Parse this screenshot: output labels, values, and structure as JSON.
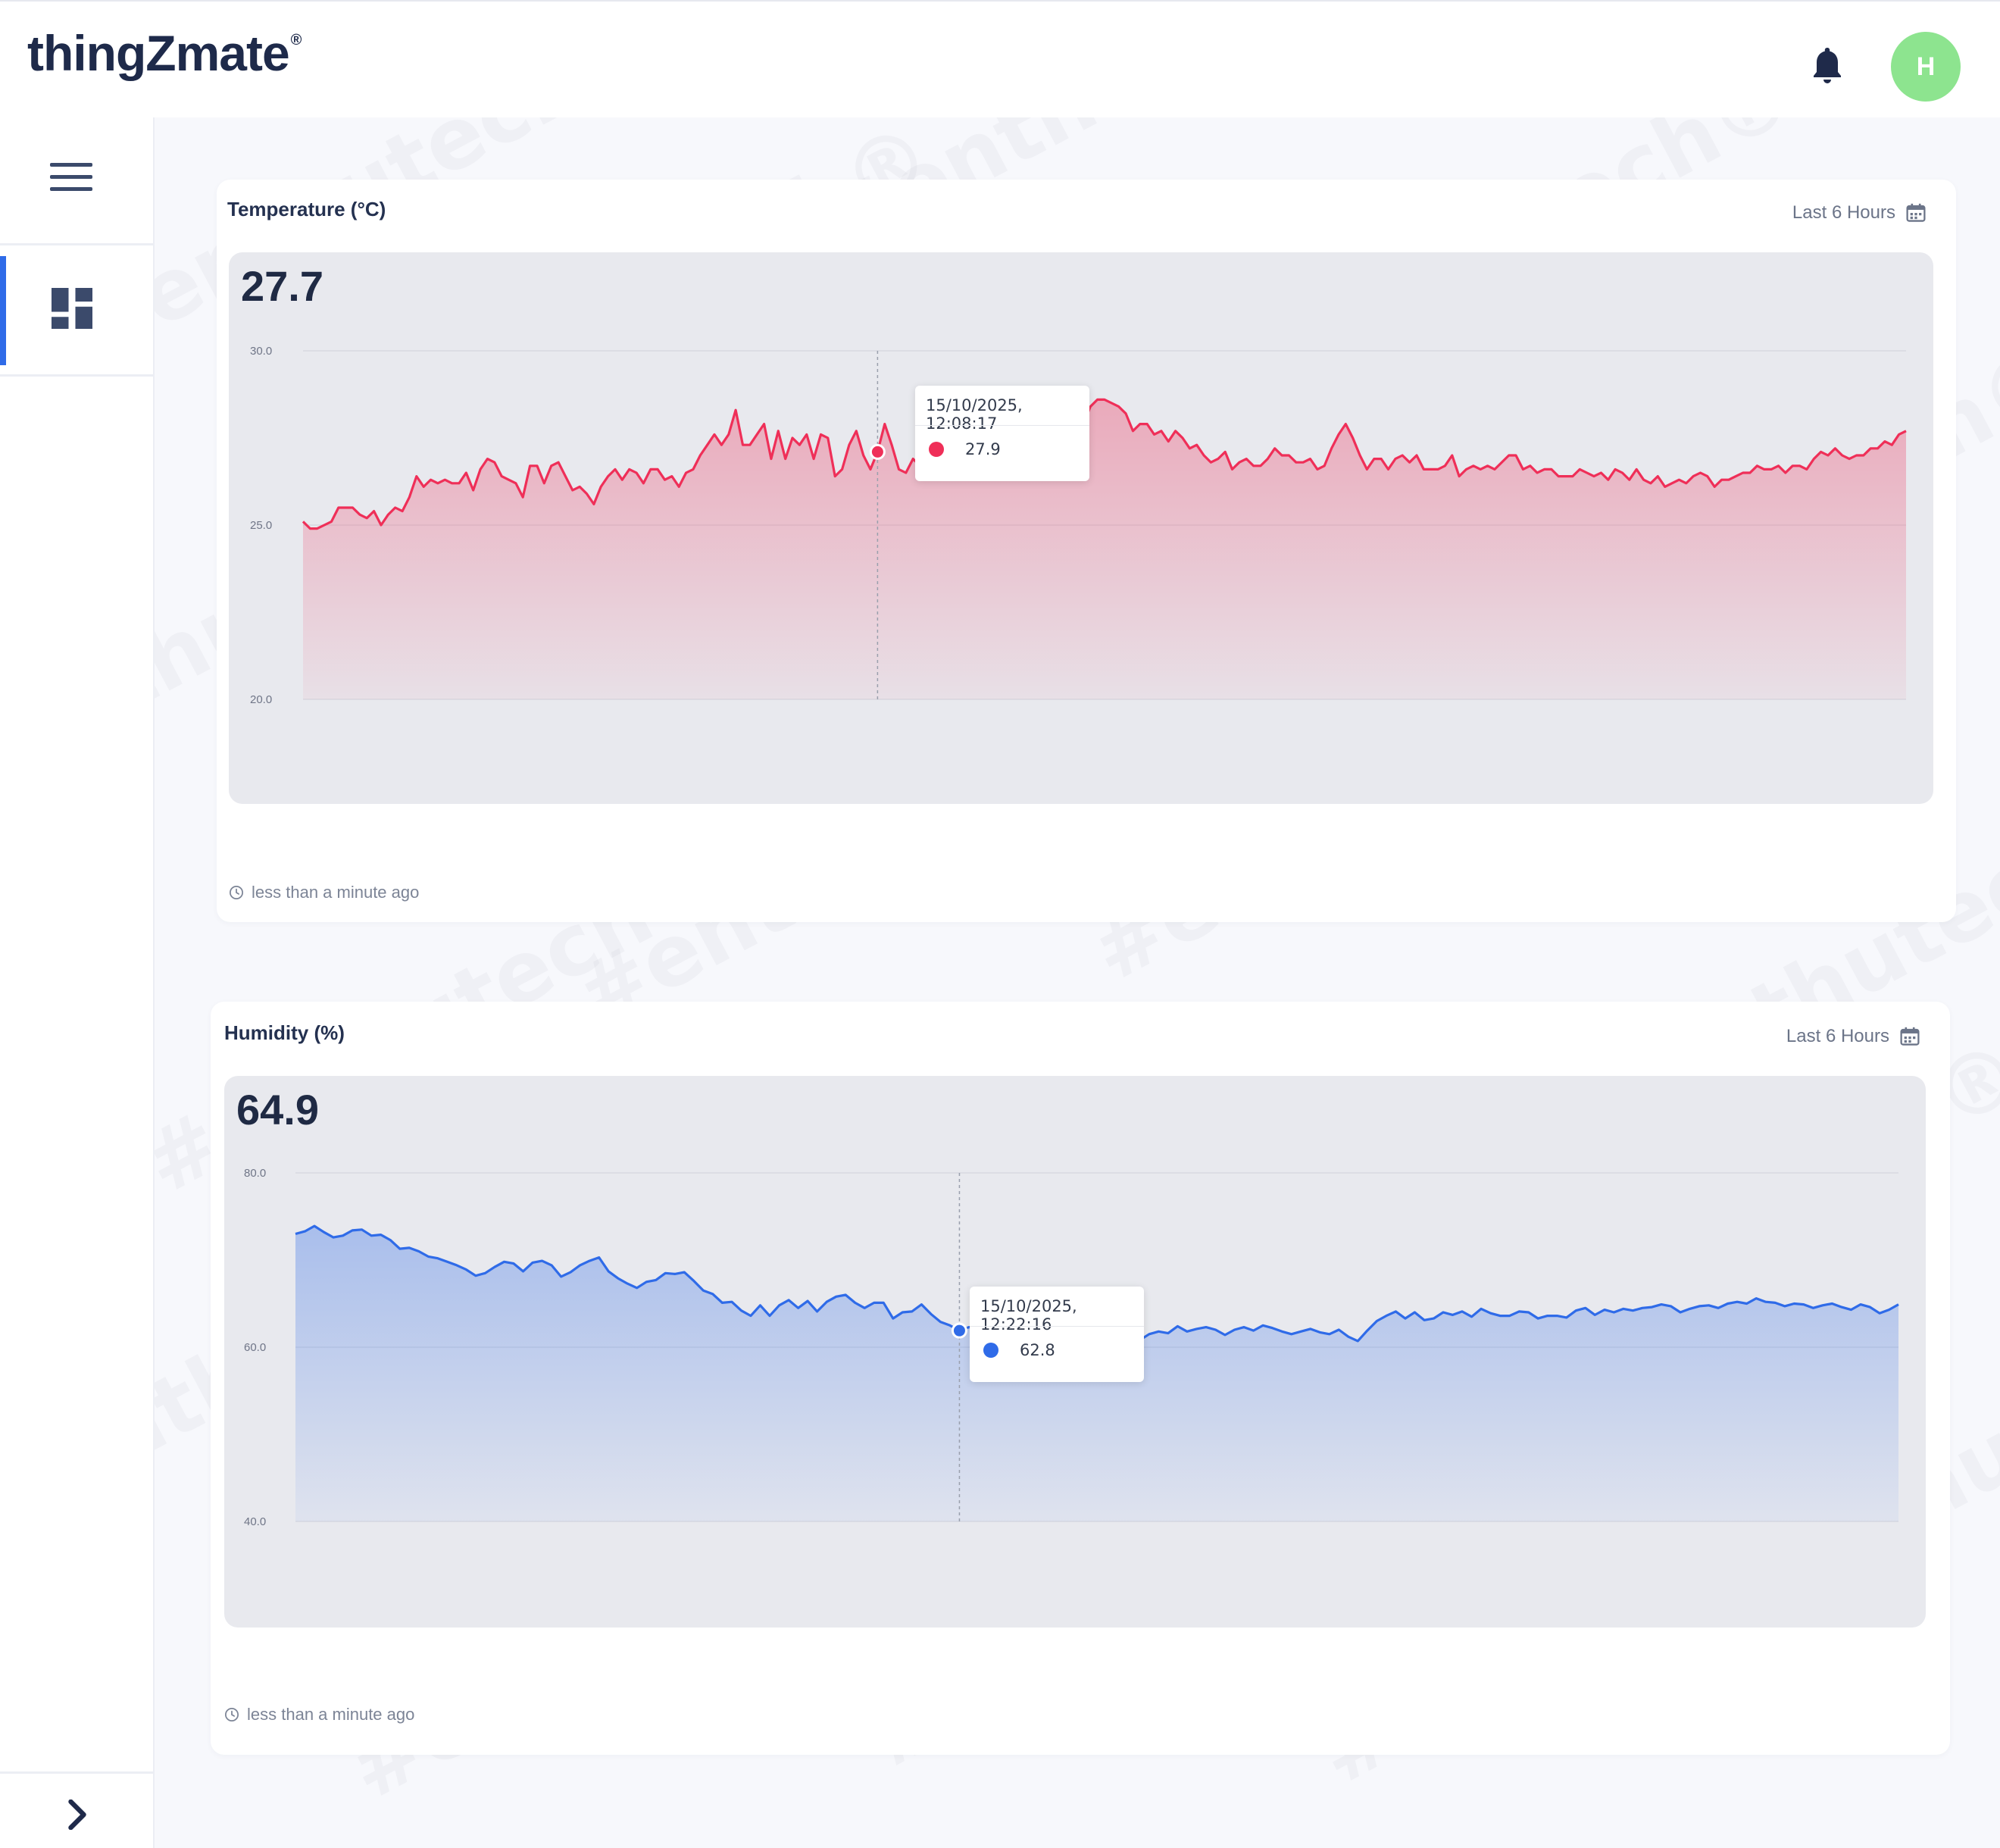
{
  "header": {
    "logo_text": "thingZmate",
    "logo_mark": "®",
    "bell_icon": "bell-icon",
    "avatar_initial": "H",
    "avatar_color": "#8de48f"
  },
  "sidebar": {
    "menu_icon": "hamburger-icon",
    "items": [
      {
        "icon": "dashboard-icon",
        "active": true
      }
    ],
    "expand_icon": "chevron-right-icon"
  },
  "watermark": "#enthutech®",
  "widgets": [
    {
      "title": "Temperature (°C)",
      "range_label": "Last 6 Hours",
      "current_value": "27.7",
      "updated": "less than a minute ago",
      "color": "#ef2f58",
      "tooltip": {
        "time": "15/10/2025, 12:08:17",
        "value": "27.9"
      }
    },
    {
      "title": "Humidity (%)",
      "range_label": "Last 6 Hours",
      "current_value": "64.9",
      "updated": "less than a minute ago",
      "color": "#2f6be8",
      "tooltip": {
        "time": "15/10/2025, 12:22:16",
        "value": "62.8"
      }
    }
  ],
  "chart_data": [
    {
      "type": "area",
      "title": "Temperature (°C)",
      "xlabel": "",
      "ylabel": "",
      "ylim": [
        20,
        30
      ],
      "yticks": [
        "30.0",
        "25.0",
        "20.0"
      ],
      "grid": true,
      "series": [
        {
          "color": "#ef2f58",
          "values": [
            25.1,
            24.9,
            24.9,
            25.0,
            25.1,
            25.5,
            25.5,
            25.5,
            25.3,
            25.2,
            25.4,
            25.0,
            25.3,
            25.5,
            25.4,
            25.8,
            26.4,
            26.1,
            26.3,
            26.2,
            26.3,
            26.2,
            26.2,
            26.5,
            26.0,
            26.6,
            26.9,
            26.8,
            26.4,
            26.3,
            26.2,
            25.8,
            26.7,
            26.7,
            26.2,
            26.7,
            26.8,
            26.4,
            26.0,
            26.1,
            25.9,
            25.6,
            26.1,
            26.4,
            26.6,
            26.3,
            26.6,
            26.5,
            26.2,
            26.6,
            26.6,
            26.3,
            26.4,
            26.1,
            26.5,
            26.6,
            27.0,
            27.3,
            27.6,
            27.3,
            27.6,
            28.3,
            27.3,
            27.3,
            27.6,
            27.9,
            26.9,
            27.7,
            26.9,
            27.5,
            27.3,
            27.6,
            26.9,
            27.6,
            27.5,
            26.4,
            26.6,
            27.3,
            27.7,
            27.0,
            26.6,
            27.1,
            27.9,
            27.3,
            26.6,
            26.5,
            26.9,
            26.7,
            27.3,
            27.8,
            26.5,
            27.2,
            27.5,
            27.8,
            27.3,
            27.4,
            28.0,
            27.7,
            27.9,
            27.4,
            27.6,
            27.5,
            27.2,
            27.1,
            27.5,
            27.8,
            27.8,
            28.2,
            27.9,
            27.8,
            27.9,
            28.4,
            28.6,
            28.6,
            28.5,
            28.4,
            28.2,
            27.7,
            27.9,
            27.9,
            27.6,
            27.7,
            27.4,
            27.7,
            27.5,
            27.2,
            27.3,
            27.0,
            26.8,
            26.9,
            27.1,
            26.6,
            26.8,
            26.9,
            26.7,
            26.7,
            26.9,
            27.2,
            27.0,
            27.0,
            26.8,
            26.8,
            26.9,
            26.6,
            26.7,
            27.2,
            27.6,
            27.9,
            27.5,
            27.0,
            26.6,
            26.9,
            26.9,
            26.6,
            26.9,
            27.0,
            26.8,
            27.0,
            26.6,
            26.6,
            26.6,
            26.7,
            27.0,
            26.4,
            26.6,
            26.7,
            26.6,
            26.7,
            26.6,
            26.8,
            27.0,
            27.0,
            26.6,
            26.7,
            26.5,
            26.6,
            26.6,
            26.4,
            26.4,
            26.4,
            26.6,
            26.5,
            26.4,
            26.5,
            26.3,
            26.6,
            26.5,
            26.3,
            26.6,
            26.3,
            26.2,
            26.4,
            26.1,
            26.2,
            26.3,
            26.2,
            26.4,
            26.5,
            26.4,
            26.1,
            26.3,
            26.3,
            26.4,
            26.5,
            26.5,
            26.7,
            26.6,
            26.6,
            26.7,
            26.5,
            26.7,
            26.7,
            26.6,
            26.9,
            27.1,
            27.0,
            27.2,
            27.0,
            26.9,
            27.0,
            27.0,
            27.2,
            27.2,
            27.4,
            27.3,
            27.6,
            27.7
          ]
        }
      ]
    },
    {
      "type": "area",
      "title": "Humidity (%)",
      "xlabel": "",
      "ylabel": "",
      "ylim": [
        40,
        80
      ],
      "yticks": [
        "80.0",
        "60.0",
        "40.0"
      ],
      "grid": true,
      "series": [
        {
          "color": "#2f6be8",
          "values": [
            73.0,
            73.3,
            73.9,
            73.2,
            72.6,
            72.8,
            73.4,
            73.5,
            72.8,
            72.9,
            72.3,
            71.3,
            71.4,
            71.0,
            70.4,
            70.2,
            69.8,
            69.4,
            68.9,
            68.2,
            68.5,
            69.2,
            69.8,
            69.6,
            68.7,
            69.7,
            69.9,
            69.4,
            68.1,
            68.6,
            69.4,
            69.9,
            70.3,
            68.7,
            67.9,
            67.3,
            66.8,
            67.5,
            67.7,
            68.5,
            68.4,
            68.6,
            67.6,
            66.5,
            66.1,
            65.1,
            65.2,
            64.2,
            63.6,
            64.8,
            63.6,
            64.8,
            65.4,
            64.5,
            65.3,
            64.1,
            65.2,
            65.8,
            66.0,
            65.1,
            64.5,
            65.1,
            65.1,
            63.3,
            64.0,
            64.1,
            64.9,
            63.8,
            62.9,
            62.5,
            61.9,
            62.3,
            62.1,
            62.5,
            61.8,
            62.8,
            63.0,
            64.8,
            62.2,
            61.0,
            62.7,
            61.4,
            62.0,
            61.5,
            62.1,
            61.8,
            62.9,
            61.2,
            61.3,
            60.8,
            61.5,
            61.8,
            61.6,
            62.4,
            61.8,
            62.1,
            62.3,
            62.0,
            61.4,
            62.0,
            62.3,
            61.9,
            62.5,
            62.2,
            61.8,
            61.5,
            61.8,
            62.1,
            61.7,
            61.5,
            62.0,
            61.2,
            60.7,
            61.9,
            63.0,
            63.6,
            64.1,
            63.3,
            64.0,
            63.1,
            63.3,
            64.0,
            63.7,
            64.1,
            63.5,
            64.4,
            63.9,
            63.6,
            63.6,
            64.1,
            64.0,
            63.3,
            63.6,
            63.6,
            63.4,
            64.2,
            64.5,
            63.7,
            64.3,
            64.0,
            64.4,
            64.2,
            64.5,
            64.6,
            64.9,
            64.7,
            64.0,
            64.4,
            64.7,
            64.8,
            64.5,
            65.0,
            65.2,
            65.0,
            65.6,
            65.2,
            65.1,
            64.7,
            65.0,
            64.9,
            64.5,
            64.8,
            65.0,
            64.6,
            64.3,
            64.9,
            64.6,
            63.9,
            64.3,
            64.9
          ]
        }
      ]
    }
  ]
}
